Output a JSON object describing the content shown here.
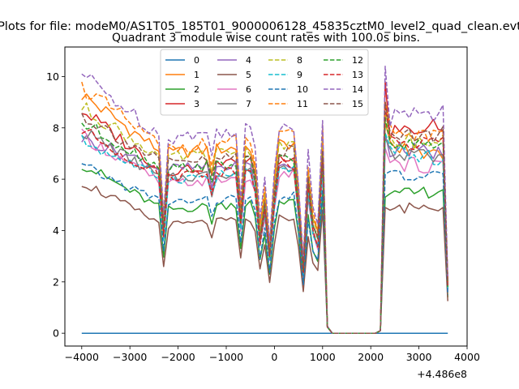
{
  "suptitle": "Plots for file: modeM0/AS1T05_185T01_9000006128_45835cztM0_level2_quad_clean.evt",
  "chart_data": {
    "type": "line",
    "title": "Quadrant 3 module wise count rates with 100.0s bins.",
    "xlabel": "",
    "ylabel": "",
    "x_offset_label": "+4.486e8",
    "xlim": [
      -4350,
      4000
    ],
    "ylim": [
      -0.5,
      11.15
    ],
    "x_ticks": [
      -4000,
      -3000,
      -2000,
      -1000,
      0,
      1000,
      2000,
      3000,
      4000
    ],
    "x_tick_labels": [
      "−4000",
      "−3000",
      "−2000",
      "−1000",
      "0",
      "1000",
      "2000",
      "3000",
      "4000"
    ],
    "y_ticks": [
      0,
      2,
      4,
      6,
      8,
      10
    ],
    "y_tick_labels": [
      "0",
      "2",
      "4",
      "6",
      "8",
      "10"
    ],
    "grid": false,
    "legend_position": "upper-center",
    "legend_columns": 4,
    "segments": [
      {
        "x0": -4000,
        "x1": 1000,
        "step": 100
      },
      {
        "x0": 1100,
        "x1": 2100,
        "step": 100
      },
      {
        "x0": 2200,
        "x1": 3600,
        "step": 100
      }
    ],
    "series": [
      {
        "name": "0",
        "color": "#1f77b4",
        "dashed": false,
        "profile": "zero"
      },
      {
        "name": "1",
        "color": "#ff7f0e",
        "dashed": false,
        "a": 9.3,
        "b": 7.0,
        "c": 7.5,
        "d": 8.2,
        "e": 7.3,
        "f": 6.9
      },
      {
        "name": "2",
        "color": "#2ca02c",
        "dashed": false,
        "a": 6.6,
        "b": 4.8,
        "c": 5.3,
        "d": 5.3,
        "e": 5.3,
        "f": 5.6
      },
      {
        "name": "3",
        "color": "#d62728",
        "dashed": false,
        "a": 8.7,
        "b": 6.3,
        "c": 7.1,
        "d": 9.8,
        "e": 7.8,
        "f": 8.1
      },
      {
        "name": "4",
        "color": "#9467bd",
        "dashed": false,
        "a": 7.6,
        "b": 6.4,
        "c": 6.6,
        "d": 7.8,
        "e": 7.2,
        "f": 7.0
      },
      {
        "name": "5",
        "color": "#8c564b",
        "dashed": false,
        "a": 5.9,
        "b": 4.2,
        "c": 4.6,
        "d": 4.9,
        "e": 4.8,
        "f": 5.0
      },
      {
        "name": "6",
        "color": "#e377c2",
        "dashed": false,
        "a": 7.7,
        "b": 5.8,
        "c": 6.3,
        "d": 7.2,
        "e": 6.6,
        "f": 6.5
      },
      {
        "name": "7",
        "color": "#7f7f7f",
        "dashed": false,
        "a": 7.9,
        "b": 6.0,
        "c": 6.6,
        "d": 7.6,
        "e": 7.0,
        "f": 6.8
      },
      {
        "name": "8",
        "color": "#bcbd22",
        "dashed": true,
        "a": 8.8,
        "b": 6.8,
        "c": 7.4,
        "d": 8.6,
        "e": 7.6,
        "f": 7.4
      },
      {
        "name": "9",
        "color": "#17becf",
        "dashed": true,
        "a": 7.5,
        "b": 6.0,
        "c": 6.4,
        "d": 7.8,
        "e": 7.0,
        "f": 6.8
      },
      {
        "name": "10",
        "color": "#1f77b4",
        "dashed": true,
        "a": 6.5,
        "b": 5.1,
        "c": 5.4,
        "d": 6.2,
        "e": 6.2,
        "f": 6.0
      },
      {
        "name": "11",
        "color": "#ff7f0e",
        "dashed": true,
        "a": 9.6,
        "b": 7.2,
        "c": 7.8,
        "d": 9.0,
        "e": 8.0,
        "f": 7.6
      },
      {
        "name": "12",
        "color": "#2ca02c",
        "dashed": true,
        "a": 8.2,
        "b": 6.4,
        "c": 6.9,
        "d": 8.4,
        "e": 7.6,
        "f": 7.2
      },
      {
        "name": "13",
        "color": "#d62728",
        "dashed": true,
        "a": 7.9,
        "b": 6.1,
        "c": 6.7,
        "d": 8.8,
        "e": 7.5,
        "f": 7.4
      },
      {
        "name": "14",
        "color": "#9467bd",
        "dashed": true,
        "a": 10.1,
        "b": 7.6,
        "c": 8.3,
        "d": 10.4,
        "e": 8.4,
        "f": 8.6
      },
      {
        "name": "15",
        "color": "#8c564b",
        "dashed": true,
        "a": 8.5,
        "b": 6.6,
        "c": 7.2,
        "d": 9.0,
        "e": 7.9,
        "f": 7.7
      }
    ]
  }
}
